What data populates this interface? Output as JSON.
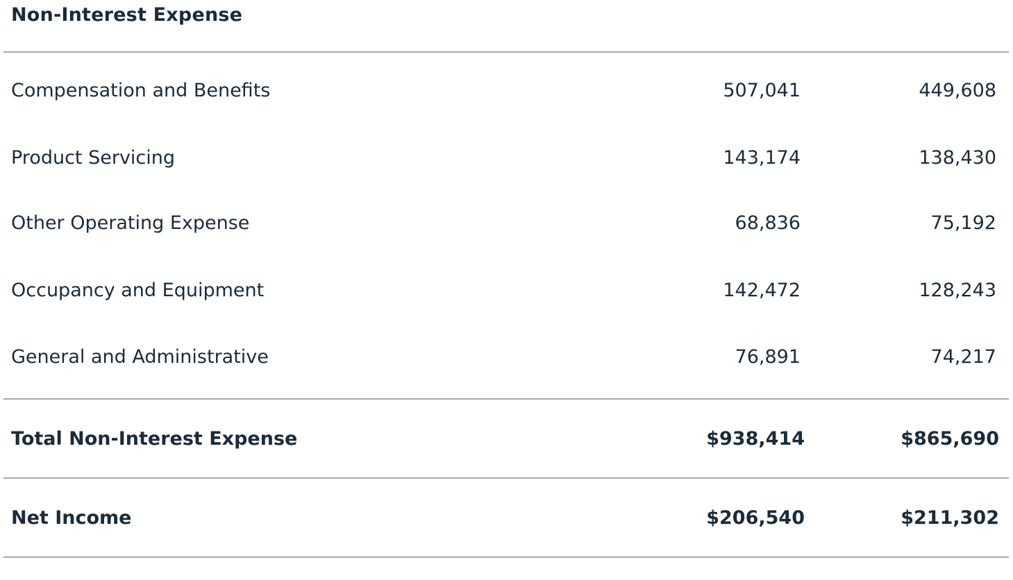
{
  "section": {
    "title": "Non-Interest Expense"
  },
  "rows": [
    {
      "label": "Compensation and Benefits",
      "col1": "507,041",
      "col2": "449,608"
    },
    {
      "label": "Product Servicing",
      "col1": "143,174",
      "col2": "138,430"
    },
    {
      "label": "Other Operating Expense",
      "col1": "68,836",
      "col2": "75,192"
    },
    {
      "label": "Occupancy and Equipment",
      "col1": "142,472",
      "col2": "128,243"
    },
    {
      "label": "General and Administrative",
      "col1": "76,891",
      "col2": "74,217"
    }
  ],
  "total": {
    "label": "Total Non-Interest Expense",
    "col1": "$938,414",
    "col2": "$865,690"
  },
  "net_income": {
    "label": "Net Income",
    "col1": "$206,540",
    "col2": "$211,302"
  },
  "colors": {
    "text": "#1c2b3a",
    "rule": "#a8a8b4"
  }
}
